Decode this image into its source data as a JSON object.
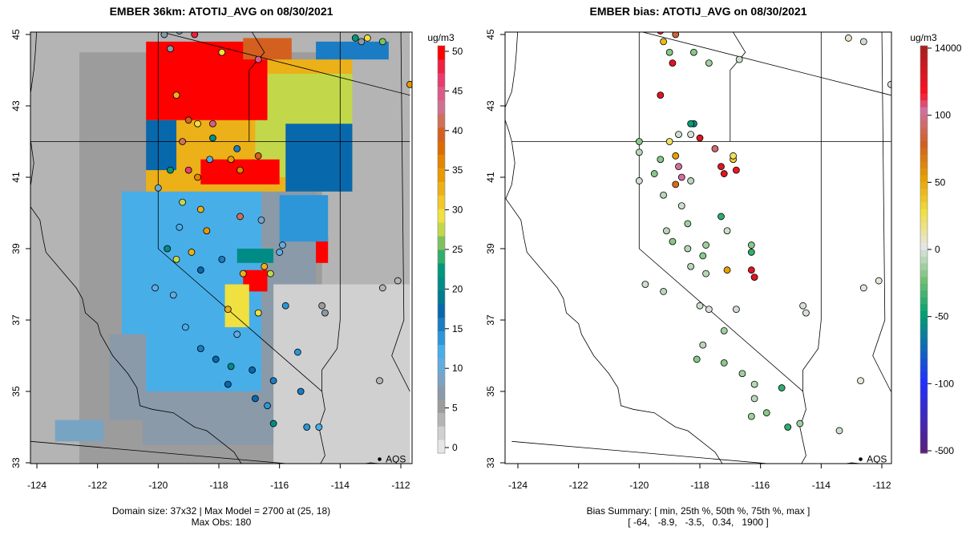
{
  "chart_data": [
    {
      "type": "heatmap",
      "title": "EMBER 36km: ATOTIJ_AVG on 08/30/2021",
      "xlim": [
        -124.2,
        -111.7
      ],
      "ylim": [
        32.9,
        45.2
      ],
      "xticks": [
        "-124",
        "-122",
        "-120",
        "-118",
        "-116",
        "-114",
        "-112"
      ],
      "yticks": [
        "33",
        "35",
        "37",
        "39",
        "41",
        "43",
        "45"
      ],
      "colorbar": {
        "unit": "ug/m3",
        "ticks": [
          "0",
          "5",
          "10",
          "15",
          "20",
          "25",
          "30",
          "35",
          "40",
          "45",
          "50"
        ],
        "min": -1,
        "max": 51
      },
      "footer": [
        "Domain size: 37x32 | Max Model = 2700 at (25, 18)",
        "Max Obs: 180"
      ],
      "marker_label": "AQS",
      "grid_regions": [
        [
          -124.2,
          -111.7,
          32.9,
          45.2,
          2.5
        ],
        [
          -122.6,
          -114.6,
          32.9,
          44.5,
          5
        ],
        [
          -120.5,
          -114.8,
          33.5,
          40.6,
          7
        ],
        [
          -116.2,
          -111.7,
          32.9,
          38,
          1
        ],
        [
          -121.2,
          -116.6,
          35,
          40.6,
          12
        ],
        [
          -120.4,
          -113.6,
          40.6,
          44.3,
          32
        ],
        [
          -116.8,
          -113.6,
          41,
          43.9,
          28
        ],
        [
          -115.8,
          -113.6,
          40.6,
          42.5,
          18
        ],
        [
          -120.4,
          -116.4,
          42.6,
          44.8,
          50
        ],
        [
          -118.6,
          -116,
          40.8,
          41.5,
          50
        ],
        [
          -120.4,
          -119.4,
          41.2,
          42.6,
          17
        ],
        [
          -117.2,
          -116.4,
          37.8,
          38.4,
          50
        ],
        [
          -117.8,
          -117,
          36.8,
          38,
          30
        ],
        [
          -117.4,
          -116.2,
          38.6,
          39.0,
          21
        ],
        [
          -114.8,
          -114.4,
          38.6,
          39.3,
          50
        ],
        [
          -116,
          -114.4,
          39.2,
          40.5,
          14
        ],
        [
          -114.8,
          -112.4,
          44.3,
          44.8,
          16
        ],
        [
          -117.2,
          -115.6,
          44.3,
          44.9,
          40
        ],
        [
          -121.6,
          -120.4,
          34.2,
          36.6,
          6
        ],
        [
          -123.4,
          -121.8,
          33.6,
          34.2,
          8
        ]
      ],
      "observations": [
        [
          -119.3,
          45.1,
          8
        ],
        [
          -118.8,
          45.0,
          48
        ],
        [
          -118.2,
          45.2,
          50
        ],
        [
          -117.9,
          44.5,
          30
        ],
        [
          -116.7,
          44.3,
          45
        ],
        [
          -113.5,
          44.9,
          22
        ],
        [
          -113.1,
          44.9,
          30
        ],
        [
          -112.6,
          44.8,
          26
        ],
        [
          -111.7,
          43.6,
          34
        ],
        [
          -119.4,
          43.3,
          32
        ],
        [
          -119,
          42.6,
          40
        ],
        [
          -118.7,
          42.5,
          30
        ],
        [
          -118.2,
          42.5,
          45
        ],
        [
          -119.2,
          42,
          42
        ],
        [
          -118.2,
          42.1,
          20
        ],
        [
          -117.4,
          41.8,
          15
        ],
        [
          -116.7,
          41.6,
          40
        ],
        [
          -119,
          41.2,
          46
        ],
        [
          -118.7,
          41.0,
          36
        ],
        [
          -118.3,
          41.5,
          12
        ],
        [
          -117.6,
          41.5,
          34
        ],
        [
          -117.3,
          41.2,
          36
        ],
        [
          -119.6,
          41.2,
          22
        ],
        [
          -120,
          40.7,
          10
        ],
        [
          -119.2,
          40.3,
          28
        ],
        [
          -118.6,
          40.1,
          32
        ],
        [
          -117.3,
          39.9,
          42
        ],
        [
          -116.6,
          39.8,
          8
        ],
        [
          -119.3,
          39.6,
          12
        ],
        [
          -118.4,
          39.5,
          34
        ],
        [
          -119.7,
          39,
          20
        ],
        [
          -119.4,
          38.7,
          28
        ],
        [
          -118.9,
          38.9,
          32
        ],
        [
          -118.6,
          38.4,
          18
        ],
        [
          -117.9,
          38.7,
          16
        ],
        [
          -117.2,
          38.3,
          32
        ],
        [
          -116.3,
          38.3,
          28
        ],
        [
          -116.5,
          38.5,
          32
        ],
        [
          -115.9,
          39.1,
          10
        ],
        [
          -116.0,
          38.9,
          10
        ],
        [
          -120.1,
          37.9,
          10
        ],
        [
          -119.5,
          37.7,
          10
        ],
        [
          -117.7,
          37.3,
          32
        ],
        [
          -116.7,
          37.2,
          30
        ],
        [
          -115.8,
          37.4,
          14
        ],
        [
          -117.4,
          36.6,
          10
        ],
        [
          -119.1,
          36.8,
          12
        ],
        [
          -118.6,
          36.2,
          16
        ],
        [
          -118.1,
          35.9,
          18
        ],
        [
          -117.6,
          35.7,
          20
        ],
        [
          -116.9,
          35.6,
          18
        ],
        [
          -116.2,
          35.3,
          16
        ],
        [
          -115.3,
          35,
          16
        ],
        [
          -115.4,
          36.1,
          14
        ],
        [
          -117.7,
          35.2,
          18
        ],
        [
          -116.8,
          34.8,
          18
        ],
        [
          -116.4,
          34.6,
          14
        ],
        [
          -116.2,
          34.1,
          20
        ],
        [
          -115.1,
          34.0,
          14
        ],
        [
          -114.7,
          34.0,
          12
        ],
        [
          -112.7,
          35.3,
          4
        ],
        [
          -112.1,
          38.1,
          4
        ],
        [
          -112.6,
          37.9,
          4
        ],
        [
          -114.6,
          37.4,
          5
        ],
        [
          -114.5,
          37.2,
          6
        ],
        [
          -113.3,
          44.8,
          6
        ],
        [
          -119.8,
          45.0,
          6
        ],
        [
          -119.6,
          44.6,
          6
        ]
      ]
    },
    {
      "type": "scatter",
      "title": "EMBER bias: ATOTIJ_AVG on 08/30/2021",
      "xlim": [
        -124.2,
        -111.7
      ],
      "ylim": [
        32.9,
        45.2
      ],
      "xticks": [
        "-124",
        "-122",
        "-120",
        "-118",
        "-116",
        "-114",
        "-112"
      ],
      "yticks": [
        "33",
        "35",
        "37",
        "39",
        "41",
        "43",
        "45"
      ],
      "colorbar": {
        "unit": "ug/m3",
        "ticks": [
          "-500",
          "-100",
          "-50",
          "0",
          "50",
          "100",
          "14000"
        ]
      },
      "footer": [
        "Bias Summary: [ min, 25th %, 50th %, 75th %, max ]",
        "[ -64,   -8.9,   -3.5,   0.34,   1900 ]"
      ],
      "marker_label": "AQS",
      "observations": [
        [
          -119.3,
          45.1,
          120
        ],
        [
          -118.8,
          45.0,
          80
        ],
        [
          -118.2,
          45.2,
          -30
        ],
        [
          -119.2,
          44.8,
          40
        ],
        [
          -119.0,
          44.5,
          -20
        ],
        [
          -118.9,
          44.2,
          150
        ],
        [
          -118.2,
          44.5,
          -20
        ],
        [
          -117.7,
          44.2,
          -15
        ],
        [
          -116.7,
          44.3,
          -5
        ],
        [
          -113.1,
          44.9,
          5
        ],
        [
          -112.6,
          44.8,
          -5
        ],
        [
          -111.7,
          43.6,
          -3
        ],
        [
          -119.3,
          43.3,
          150
        ],
        [
          -118.2,
          42.5,
          -60
        ],
        [
          -118.3,
          42.5,
          -50
        ],
        [
          -118.7,
          42.2,
          -5
        ],
        [
          -118.3,
          42.2,
          -3
        ],
        [
          -119.0,
          42.0,
          20
        ],
        [
          -118.0,
          42.1,
          150
        ],
        [
          -117.5,
          41.8,
          90
        ],
        [
          -120,
          42.0,
          -20
        ],
        [
          -120,
          41.7,
          -10
        ],
        [
          -119.3,
          41.5,
          -20
        ],
        [
          -118.8,
          41.6,
          50
        ],
        [
          -118.7,
          41.3,
          100
        ],
        [
          -118.6,
          41.0,
          100
        ],
        [
          -118.8,
          40.8,
          70
        ],
        [
          -117.3,
          41.3,
          150
        ],
        [
          -117.2,
          41.1,
          150
        ],
        [
          -116.9,
          41.5,
          30
        ],
        [
          -116.8,
          41.2,
          130
        ],
        [
          -116.9,
          41.6,
          20
        ],
        [
          -119.5,
          41.1,
          -20
        ],
        [
          -118.3,
          40.9,
          -10
        ],
        [
          -120,
          40.9,
          -5
        ],
        [
          -119.2,
          40.5,
          -10
        ],
        [
          -118.6,
          40.2,
          -5
        ],
        [
          -118.4,
          39.7,
          -15
        ],
        [
          -117.3,
          39.9,
          -40
        ],
        [
          -117.1,
          39.5,
          -5
        ],
        [
          -119.1,
          39.5,
          -10
        ],
        [
          -118.9,
          39.2,
          -20
        ],
        [
          -118.4,
          39.0,
          -10
        ],
        [
          -117.8,
          39.1,
          -15
        ],
        [
          -117.9,
          38.8,
          -20
        ],
        [
          -116.3,
          39.1,
          -20
        ],
        [
          -116.3,
          38.9,
          -40
        ],
        [
          -116.3,
          38.4,
          150
        ],
        [
          -116.2,
          38.2,
          150
        ],
        [
          -117.1,
          38.4,
          50
        ],
        [
          -117.8,
          38.3,
          -10
        ],
        [
          -118.3,
          38.5,
          -10
        ],
        [
          -119.8,
          38.0,
          -5
        ],
        [
          -119.2,
          37.8,
          -10
        ],
        [
          -118.0,
          37.4,
          -5
        ],
        [
          -117.7,
          37.3,
          -3
        ],
        [
          -116.8,
          37.3,
          -5
        ],
        [
          -117.2,
          36.7,
          -15
        ],
        [
          -117.9,
          36.3,
          -10
        ],
        [
          -118.1,
          35.9,
          -20
        ],
        [
          -117.2,
          35.8,
          -20
        ],
        [
          -116.6,
          35.5,
          -15
        ],
        [
          -116.2,
          35.2,
          -10
        ],
        [
          -115.3,
          35.1,
          -40
        ],
        [
          -116.2,
          34.8,
          -10
        ],
        [
          -115.8,
          34.4,
          -20
        ],
        [
          -116.3,
          34.3,
          -15
        ],
        [
          -115.1,
          34,
          -40
        ],
        [
          -114.7,
          34.1,
          -15
        ],
        [
          -113.4,
          33.9,
          -5
        ],
        [
          -112.7,
          35.3,
          2
        ],
        [
          -112.1,
          38.1,
          2
        ],
        [
          -112.6,
          37.9,
          2
        ],
        [
          -114.6,
          37.4,
          -3
        ],
        [
          -114.5,
          37.2,
          -3
        ]
      ]
    }
  ]
}
